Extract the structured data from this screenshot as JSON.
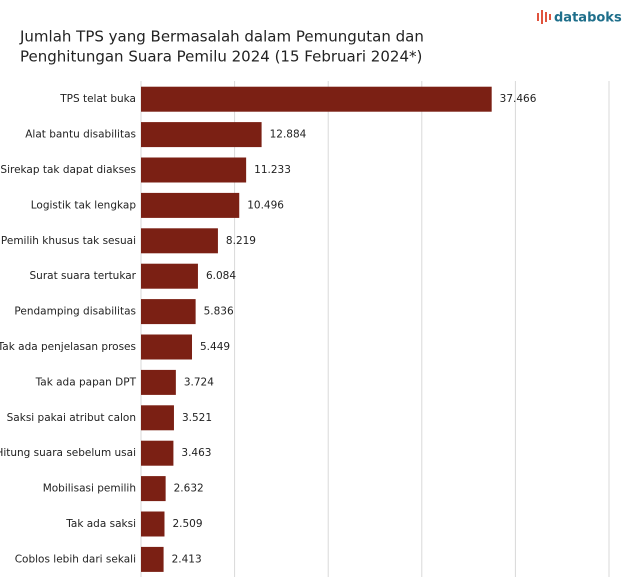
{
  "chart_data": {
    "type": "bar",
    "orientation": "horizontal",
    "brand": "databoks",
    "title": [
      "Jumlah TPS yang Bermasalah dalam Pemungutan dan",
      "Penghitungan Suara Pemilu 2024 (15 Februari 2024*)"
    ],
    "categories": [
      "TPS telat buka",
      "Alat bantu disabilitas",
      "Sirekap tak dapat diakses",
      "Logistik tak lengkap",
      "Pemilih khusus tak sesuai",
      "Surat suara tertukar",
      "Pendamping disabilitas",
      "Tak ada penjelasan proses",
      "Tak ada papan DPT",
      "Saksi pakai atribut calon",
      "Hitung suara sebelum usai",
      "Mobilisasi pemilih",
      "Tak ada saksi",
      "Coblos lebih dari sekali"
    ],
    "values": [
      37466,
      12884,
      11233,
      10496,
      8219,
      6084,
      5836,
      5449,
      3724,
      3521,
      3463,
      2632,
      2509,
      2413
    ],
    "value_labels": [
      "37.466",
      "12.884",
      "11.233",
      "10.496",
      "8.219",
      "6.084",
      "5.836",
      "5.449",
      "3.724",
      "3.521",
      "3.463",
      "2.632",
      "2.509",
      "2.413"
    ],
    "color": "#7b2014",
    "xlim": [
      0,
      50000
    ],
    "xticks": [
      0,
      10000,
      20000,
      30000,
      40000,
      50000
    ],
    "grid": true
  }
}
